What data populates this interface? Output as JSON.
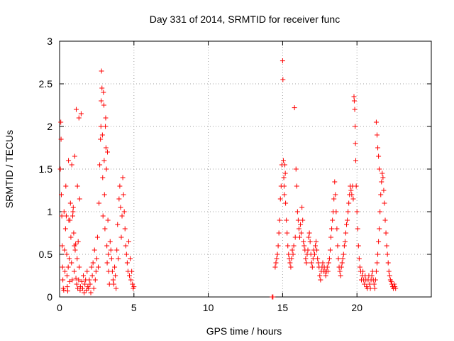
{
  "chart_data": {
    "type": "scatter",
    "title": "Day 331 of 2014, SRMTID for receiver func",
    "xlabel": "GPS time / hours",
    "ylabel": "SRMTID / TECUs",
    "xlim": [
      0,
      25
    ],
    "ylim": [
      0,
      3
    ],
    "xticks": [
      0,
      5,
      10,
      15,
      20
    ],
    "xtick_labels": [
      "0",
      "5",
      "10",
      "15",
      "20"
    ],
    "yticks": [
      0,
      0.5,
      1,
      1.5,
      2,
      2.5,
      3
    ],
    "ytick_labels": [
      "0",
      "0.5",
      "1",
      "1.5",
      "2",
      "2.5",
      "3"
    ],
    "grid": true,
    "marker": "+",
    "color": "#ff0000",
    "series": [
      {
        "name": "SRMTID",
        "points": [
          [
            0.05,
            1.5
          ],
          [
            0.08,
            2.05
          ],
          [
            0.1,
            1.85
          ],
          [
            0.12,
            1.2
          ],
          [
            0.15,
            0.95
          ],
          [
            0.18,
            0.6
          ],
          [
            0.2,
            0.35
          ],
          [
            0.22,
            0.2
          ],
          [
            0.25,
            0.1
          ],
          [
            0.28,
            0.08
          ],
          [
            0.3,
            1.0
          ],
          [
            0.33,
            0.55
          ],
          [
            0.36,
            0.3
          ],
          [
            0.4,
            0.8
          ],
          [
            0.42,
            1.3
          ],
          [
            0.45,
            0.95
          ],
          [
            0.48,
            0.5
          ],
          [
            0.5,
            0.25
          ],
          [
            0.52,
            0.12
          ],
          [
            0.55,
            0.07
          ],
          [
            0.58,
            0.35
          ],
          [
            0.6,
            1.6
          ],
          [
            0.62,
            0.9
          ],
          [
            0.65,
            0.45
          ],
          [
            0.68,
            0.18
          ],
          [
            0.7,
            0.9
          ],
          [
            0.73,
            1.1
          ],
          [
            0.76,
            0.7
          ],
          [
            0.8,
            0.4
          ],
          [
            0.82,
            1.55
          ],
          [
            0.85,
            0.2
          ],
          [
            0.88,
            0.95
          ],
          [
            0.9,
            1.0
          ],
          [
            0.92,
            1.05
          ],
          [
            0.95,
            0.75
          ],
          [
            0.98,
            0.3
          ],
          [
            1.0,
            0.6
          ],
          [
            1.02,
            1.65
          ],
          [
            1.05,
            0.55
          ],
          [
            1.08,
            0.62
          ],
          [
            1.1,
            0.22
          ],
          [
            1.12,
            2.2
          ],
          [
            1.15,
            0.15
          ],
          [
            1.18,
            0.45
          ],
          [
            1.2,
            1.3
          ],
          [
            1.22,
            0.1
          ],
          [
            1.25,
            0.65
          ],
          [
            1.28,
            0.2
          ],
          [
            1.3,
            2.1
          ],
          [
            1.32,
            0.35
          ],
          [
            1.35,
            1.15
          ],
          [
            1.38,
            0.08
          ],
          [
            1.4,
            0.12
          ],
          [
            1.45,
            2.15
          ],
          [
            1.5,
            0.18
          ],
          [
            1.55,
            0.1
          ],
          [
            1.6,
            0.25
          ],
          [
            1.65,
            0.05
          ],
          [
            1.7,
            0.15
          ],
          [
            1.75,
            0.2
          ],
          [
            1.8,
            0.08
          ],
          [
            1.85,
            0.3
          ],
          [
            1.9,
            0.12
          ],
          [
            1.95,
            0.1
          ],
          [
            2.0,
            0.2
          ],
          [
            2.05,
            0.15
          ],
          [
            2.1,
            0.05
          ],
          [
            2.15,
            0.35
          ],
          [
            2.2,
            0.25
          ],
          [
            2.25,
            0.4
          ],
          [
            2.3,
            0.1
          ],
          [
            2.35,
            0.55
          ],
          [
            2.4,
            0.2
          ],
          [
            2.45,
            0.3
          ],
          [
            2.5,
            0.45
          ],
          [
            2.55,
            0.7
          ],
          [
            2.6,
            0.35
          ],
          [
            2.65,
            1.1
          ],
          [
            2.7,
            1.55
          ],
          [
            2.75,
            1.85
          ],
          [
            2.78,
            2.0
          ],
          [
            2.8,
            2.3
          ],
          [
            2.82,
            2.65
          ],
          [
            2.85,
            2.45
          ],
          [
            2.88,
            1.9
          ],
          [
            2.9,
            1.4
          ],
          [
            2.92,
            0.95
          ],
          [
            2.95,
            2.4
          ],
          [
            2.98,
            2.25
          ],
          [
            3.0,
            1.6
          ],
          [
            3.02,
            1.2
          ],
          [
            3.05,
            0.8
          ],
          [
            3.08,
            2.0
          ],
          [
            3.1,
            2.1
          ],
          [
            3.12,
            1.75
          ],
          [
            3.15,
            1.5
          ],
          [
            3.18,
            0.6
          ],
          [
            3.2,
            0.4
          ],
          [
            3.22,
            1.7
          ],
          [
            3.25,
            0.9
          ],
          [
            3.28,
            0.5
          ],
          [
            3.3,
            0.3
          ],
          [
            3.35,
            0.15
          ],
          [
            3.4,
            0.65
          ],
          [
            3.45,
            0.55
          ],
          [
            3.5,
            0.45
          ],
          [
            3.55,
            0.3
          ],
          [
            3.6,
            0.2
          ],
          [
            3.65,
            0.15
          ],
          [
            3.7,
            0.35
          ],
          [
            3.75,
            0.25
          ],
          [
            3.8,
            0.1
          ],
          [
            3.85,
            0.55
          ],
          [
            3.9,
            0.85
          ],
          [
            3.95,
            0.45
          ],
          [
            4.0,
            1.15
          ],
          [
            4.05,
            1.3
          ],
          [
            4.1,
            1.05
          ],
          [
            4.15,
            0.7
          ],
          [
            4.2,
            0.95
          ],
          [
            4.25,
            1.4
          ],
          [
            4.3,
            1.2
          ],
          [
            4.35,
            1.0
          ],
          [
            4.4,
            0.8
          ],
          [
            4.45,
            0.6
          ],
          [
            4.5,
            0.5
          ],
          [
            4.55,
            0.4
          ],
          [
            4.6,
            0.3
          ],
          [
            4.65,
            0.65
          ],
          [
            4.7,
            0.25
          ],
          [
            4.75,
            0.45
          ],
          [
            4.8,
            0.2
          ],
          [
            4.85,
            0.3
          ],
          [
            4.9,
            0.15
          ],
          [
            4.95,
            0.1
          ],
          [
            5.0,
            0.12
          ],
          [
            14.3,
            0.0
          ],
          [
            14.35,
            0.0
          ],
          [
            14.5,
            0.35
          ],
          [
            14.55,
            0.4
          ],
          [
            14.6,
            0.45
          ],
          [
            14.65,
            0.5
          ],
          [
            14.7,
            0.6
          ],
          [
            14.75,
            0.75
          ],
          [
            14.8,
            0.9
          ],
          [
            14.85,
            1.15
          ],
          [
            14.9,
            1.3
          ],
          [
            14.95,
            1.55
          ],
          [
            15.0,
            2.77
          ],
          [
            15.02,
            2.55
          ],
          [
            15.05,
            1.6
          ],
          [
            15.08,
            1.4
          ],
          [
            15.1,
            1.3
          ],
          [
            15.12,
            1.2
          ],
          [
            15.15,
            1.55
          ],
          [
            15.18,
            1.45
          ],
          [
            15.2,
            1.1
          ],
          [
            15.25,
            0.9
          ],
          [
            15.3,
            0.75
          ],
          [
            15.35,
            0.6
          ],
          [
            15.4,
            0.5
          ],
          [
            15.45,
            0.45
          ],
          [
            15.5,
            0.4
          ],
          [
            15.55,
            0.35
          ],
          [
            15.6,
            0.45
          ],
          [
            15.65,
            0.55
          ],
          [
            15.7,
            0.5
          ],
          [
            15.75,
            0.6
          ],
          [
            15.8,
            2.22
          ],
          [
            15.85,
            0.7
          ],
          [
            15.9,
            1.5
          ],
          [
            15.95,
            1.3
          ],
          [
            16.0,
            1.0
          ],
          [
            16.05,
            0.9
          ],
          [
            16.1,
            0.8
          ],
          [
            16.15,
            0.7
          ],
          [
            16.2,
            0.85
          ],
          [
            16.25,
            0.75
          ],
          [
            16.3,
            1.05
          ],
          [
            16.35,
            0.9
          ],
          [
            16.4,
            0.65
          ],
          [
            16.45,
            0.6
          ],
          [
            16.5,
            0.55
          ],
          [
            16.55,
            0.45
          ],
          [
            16.6,
            0.4
          ],
          [
            16.65,
            0.5
          ],
          [
            16.7,
            0.55
          ],
          [
            16.75,
            0.7
          ],
          [
            16.8,
            0.75
          ],
          [
            16.85,
            0.65
          ],
          [
            16.9,
            0.5
          ],
          [
            16.95,
            0.4
          ],
          [
            17.0,
            0.35
          ],
          [
            17.05,
            0.45
          ],
          [
            17.1,
            0.55
          ],
          [
            17.15,
            0.5
          ],
          [
            17.2,
            0.6
          ],
          [
            17.25,
            0.65
          ],
          [
            17.3,
            0.55
          ],
          [
            17.35,
            0.45
          ],
          [
            17.4,
            0.4
          ],
          [
            17.45,
            0.35
          ],
          [
            17.5,
            0.25
          ],
          [
            17.55,
            0.2
          ],
          [
            17.6,
            0.3
          ],
          [
            17.65,
            0.35
          ],
          [
            17.7,
            0.4
          ],
          [
            17.75,
            0.3
          ],
          [
            17.8,
            0.35
          ],
          [
            17.85,
            0.3
          ],
          [
            17.9,
            0.25
          ],
          [
            17.95,
            0.3
          ],
          [
            18.0,
            0.35
          ],
          [
            18.05,
            0.3
          ],
          [
            18.1,
            0.4
          ],
          [
            18.15,
            0.45
          ],
          [
            18.2,
            0.55
          ],
          [
            18.25,
            0.7
          ],
          [
            18.3,
            0.8
          ],
          [
            18.35,
            0.9
          ],
          [
            18.4,
            1.0
          ],
          [
            18.45,
            1.15
          ],
          [
            18.5,
            1.35
          ],
          [
            18.55,
            1.2
          ],
          [
            18.6,
            1.0
          ],
          [
            18.65,
            0.8
          ],
          [
            18.7,
            0.6
          ],
          [
            18.75,
            0.45
          ],
          [
            18.8,
            0.35
          ],
          [
            18.85,
            0.3
          ],
          [
            18.9,
            0.25
          ],
          [
            18.95,
            0.35
          ],
          [
            19.0,
            0.4
          ],
          [
            19.05,
            0.45
          ],
          [
            19.1,
            0.5
          ],
          [
            19.15,
            0.6
          ],
          [
            19.2,
            0.65
          ],
          [
            19.25,
            0.75
          ],
          [
            19.3,
            0.85
          ],
          [
            19.35,
            0.9
          ],
          [
            19.4,
            1.0
          ],
          [
            19.45,
            1.1
          ],
          [
            19.5,
            1.2
          ],
          [
            19.55,
            1.3
          ],
          [
            19.6,
            1.25
          ],
          [
            19.65,
            1.2
          ],
          [
            19.7,
            1.3
          ],
          [
            19.75,
            1.15
          ],
          [
            19.8,
            2.35
          ],
          [
            19.82,
            2.3
          ],
          [
            19.85,
            2.2
          ],
          [
            19.88,
            2.0
          ],
          [
            19.9,
            1.8
          ],
          [
            19.92,
            1.6
          ],
          [
            19.95,
            1.3
          ],
          [
            20.0,
            1.0
          ],
          [
            20.05,
            0.8
          ],
          [
            20.1,
            0.6
          ],
          [
            20.15,
            0.45
          ],
          [
            20.2,
            0.35
          ],
          [
            20.25,
            0.3
          ],
          [
            20.3,
            0.2
          ],
          [
            20.35,
            0.25
          ],
          [
            20.4,
            0.3
          ],
          [
            20.45,
            0.2
          ],
          [
            20.5,
            0.15
          ],
          [
            20.55,
            0.25
          ],
          [
            20.6,
            0.2
          ],
          [
            20.65,
            0.12
          ],
          [
            20.7,
            0.1
          ],
          [
            20.75,
            0.2
          ],
          [
            20.8,
            0.25
          ],
          [
            20.85,
            0.15
          ],
          [
            20.9,
            0.1
          ],
          [
            20.95,
            0.2
          ],
          [
            21.0,
            0.25
          ],
          [
            21.05,
            0.3
          ],
          [
            21.1,
            0.2
          ],
          [
            21.15,
            0.15
          ],
          [
            21.2,
            0.1
          ],
          [
            21.25,
            0.2
          ],
          [
            21.3,
            0.3
          ],
          [
            21.35,
            0.4
          ],
          [
            21.4,
            0.5
          ],
          [
            21.45,
            0.65
          ],
          [
            21.5,
            0.8
          ],
          [
            21.55,
            1.0
          ],
          [
            21.6,
            1.2
          ],
          [
            21.65,
            1.35
          ],
          [
            21.7,
            1.45
          ],
          [
            21.75,
            1.4
          ],
          [
            21.8,
            1.25
          ],
          [
            21.85,
            1.1
          ],
          [
            21.9,
            0.9
          ],
          [
            21.95,
            0.75
          ],
          [
            22.0,
            0.6
          ],
          [
            22.05,
            0.5
          ],
          [
            22.1,
            0.4
          ],
          [
            22.15,
            0.3
          ],
          [
            22.2,
            0.25
          ],
          [
            22.25,
            0.2
          ],
          [
            22.3,
            0.18
          ],
          [
            22.35,
            0.15
          ],
          [
            22.4,
            0.12
          ],
          [
            22.45,
            0.1
          ],
          [
            22.5,
            0.15
          ],
          [
            22.55,
            0.12
          ],
          [
            22.6,
            0.1
          ],
          [
            21.3,
            2.05
          ],
          [
            21.35,
            1.9
          ],
          [
            21.4,
            1.75
          ],
          [
            21.45,
            1.65
          ],
          [
            21.5,
            1.5
          ]
        ]
      }
    ]
  }
}
